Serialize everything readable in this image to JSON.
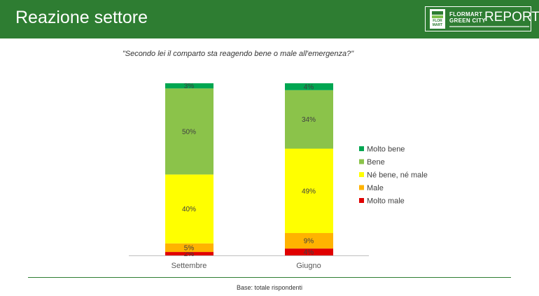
{
  "header": {
    "title": "Reazione settore",
    "logo": {
      "mark": "FLOR MART",
      "line1": "FLORMART",
      "line2": "GREEN CITY",
      "report": "REPORT"
    }
  },
  "subtitle": "\"Secondo lei il comparto sta reagendo bene o male all'emergenza?\"",
  "footer": {
    "base": "Base: totale rispondenti"
  },
  "chart_data": {
    "type": "bar",
    "stacked": true,
    "normalized_percent": true,
    "categories": [
      "Settembre",
      "Giugno"
    ],
    "series": [
      {
        "name": "Molto male",
        "color": "#e00000",
        "values": [
          2,
          4
        ],
        "labels": [
          "2%",
          "4%"
        ]
      },
      {
        "name": "Male",
        "color": "#ffb300",
        "values": [
          5,
          9
        ],
        "labels": [
          "5%",
          "9%"
        ]
      },
      {
        "name": "Né bene, né male",
        "color": "#ffff00",
        "values": [
          40,
          49
        ],
        "labels": [
          "40%",
          "49%"
        ]
      },
      {
        "name": "Bene",
        "color": "#8bc34a",
        "values": [
          50,
          34
        ],
        "labels": [
          "50%",
          "34%"
        ]
      },
      {
        "name": "Molto bene",
        "color": "#00a651",
        "values": [
          3,
          4
        ],
        "labels": [
          "3%",
          "4%"
        ]
      }
    ],
    "legend": {
      "position": "right",
      "order": [
        "Molto bene",
        "Bene",
        "Né bene, né male",
        "Male",
        "Molto male"
      ]
    },
    "grid": false
  }
}
